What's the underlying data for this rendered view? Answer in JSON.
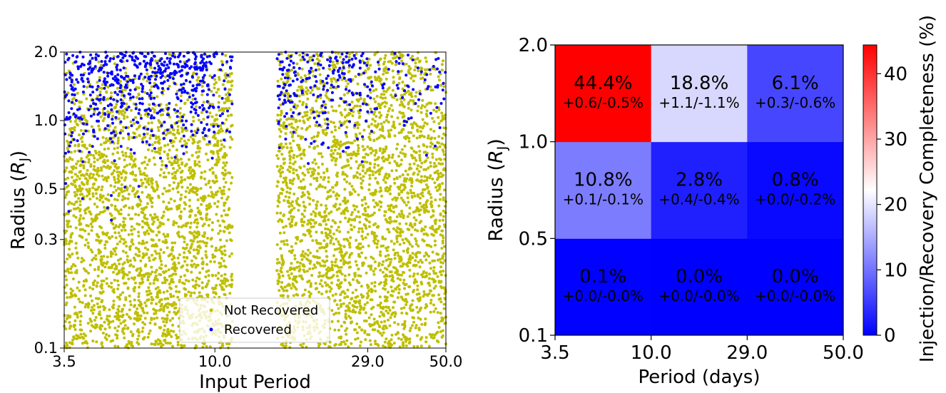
{
  "chart_data": [
    {
      "type": "scatter",
      "xlabel": "Input Period",
      "ylabel": "Radius (R_J)",
      "ylabel_main": "Radius (",
      "ylabel_symbol": "R",
      "ylabel_subscript": "J",
      "ylabel_close": ")",
      "x_scale": "log",
      "y_scale": "log",
      "xlim": [
        3.5,
        50.0
      ],
      "ylim": [
        0.1,
        2.0
      ],
      "x_ticks": [
        3.5,
        10.0,
        29.0,
        50.0
      ],
      "x_tick_labels": [
        "3.5",
        "10.0",
        "29.0",
        "50.0"
      ],
      "y_ticks": [
        0.1,
        0.3,
        0.5,
        1.0,
        2.0
      ],
      "y_tick_labels": [
        "0.1",
        "0.3",
        "0.5",
        "1.0",
        "2.0"
      ],
      "gap_x": [
        11.3,
        15.4
      ],
      "legend_position": "lower-center",
      "series": [
        {
          "name": "Not Recovered",
          "color": "#bfbf00",
          "approx_points": 5200
        },
        {
          "name": "Recovered",
          "color": "#0000ff",
          "approx_points": 900
        }
      ]
    },
    {
      "type": "heatmap",
      "xlabel": "Period (days)",
      "ylabel": "Radius (R_J)",
      "ylabel_main": "Radius (",
      "ylabel_symbol": "R",
      "ylabel_subscript": "J",
      "ylabel_close": ")",
      "x_edges": [
        3.5,
        10.0,
        29.0,
        50.0
      ],
      "y_edges": [
        0.1,
        0.5,
        1.0,
        2.0
      ],
      "x_tick_labels": [
        "3.5",
        "10.0",
        "29.0",
        "50.0"
      ],
      "y_tick_labels": [
        "0.1",
        "0.5",
        "1.0",
        "2.0"
      ],
      "colorscale": "bwr",
      "color_range": [
        0,
        44.4
      ],
      "colorbar_label": "Injection/Recovery Completeness (%)",
      "colorbar_ticks": [
        0,
        10,
        20,
        30,
        40
      ],
      "colorbar_tick_labels": [
        "0",
        "10",
        "20",
        "30",
        "40"
      ],
      "cells": [
        [
          {
            "value": 0.1,
            "label": "0.1%",
            "err": "+0.0/-0.0%"
          },
          {
            "value": 0.0,
            "label": "0.0%",
            "err": "+0.0/-0.0%"
          },
          {
            "value": 0.0,
            "label": "0.0%",
            "err": "+0.0/-0.0%"
          }
        ],
        [
          {
            "value": 10.8,
            "label": "10.8%",
            "err": "+0.1/-0.1%"
          },
          {
            "value": 2.8,
            "label": "2.8%",
            "err": "+0.4/-0.4%"
          },
          {
            "value": 0.8,
            "label": "0.8%",
            "err": "+0.0/-0.2%"
          }
        ],
        [
          {
            "value": 44.4,
            "label": "44.4%",
            "err": "+0.6/-0.5%"
          },
          {
            "value": 18.8,
            "label": "18.8%",
            "err": "+1.1/-1.1%"
          },
          {
            "value": 6.1,
            "label": "6.1%",
            "err": "+0.3/-0.6%"
          }
        ]
      ]
    }
  ]
}
